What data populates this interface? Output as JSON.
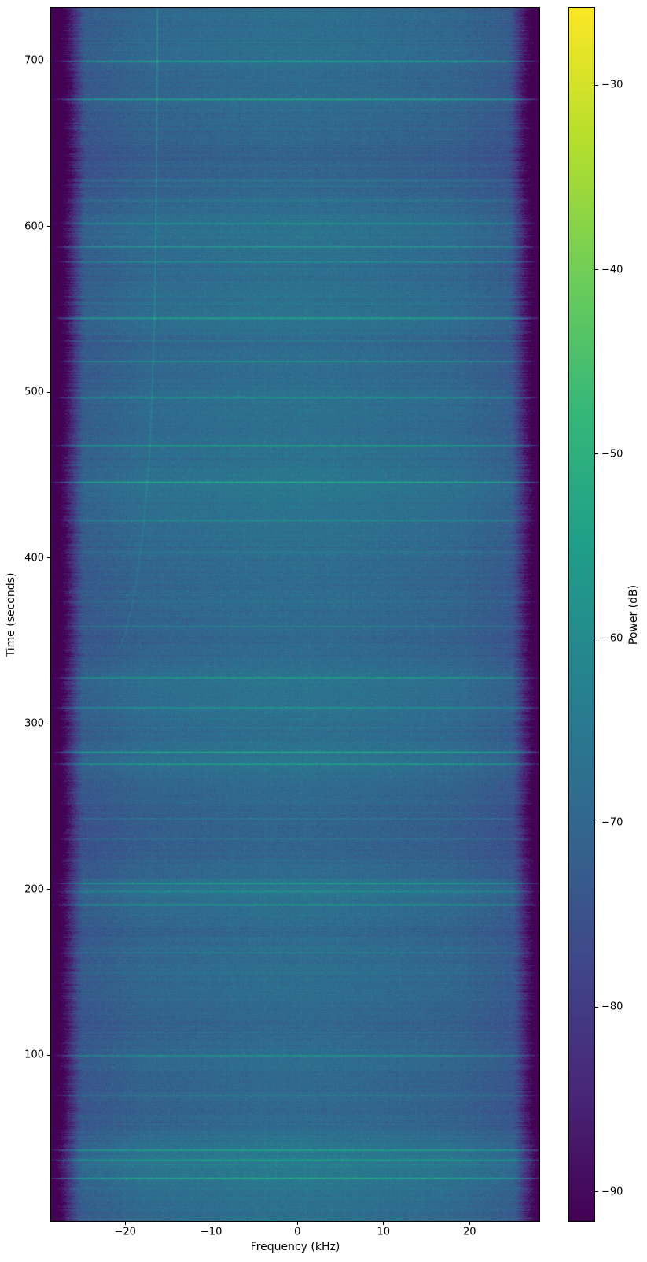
{
  "figure": {
    "background": "#ffffff",
    "spine_color": "#000000",
    "text_color": "#000000"
  },
  "chart_data": {
    "type": "heatmap",
    "subtype": "spectrogram-waterfall",
    "title": "",
    "xlabel": "Frequency (kHz)",
    "ylabel": "Time (seconds)",
    "grid": false,
    "x_extent_khz": [
      -28.6,
      28.1
    ],
    "t_extent_s": [
      0,
      732
    ],
    "x_ticks": [
      -20,
      -10,
      0,
      10,
      20
    ],
    "x_tick_labels": [
      "−20",
      "−10",
      "0",
      "10",
      "20"
    ],
    "y_ticks": [
      700,
      600,
      500,
      400,
      300,
      200,
      100
    ],
    "y_tick_labels": [
      "700",
      "600",
      "500",
      "400",
      "300",
      "200",
      "100"
    ],
    "colormap": "viridis",
    "colormap_anchors": [
      "#440154",
      "#482878",
      "#3e4a89",
      "#31688e",
      "#26828e",
      "#1f9e89",
      "#35b779",
      "#6dcd59",
      "#b4de2c",
      "#fde725"
    ],
    "colorbar": {
      "label": "Power (dB)",
      "vmax": -25.8,
      "vmin": -91.6,
      "ticks": [
        -30,
        -40,
        -50,
        -60,
        -70,
        -80,
        -90
      ],
      "tick_labels": [
        "−30",
        "−40",
        "−50",
        "−60",
        "−70",
        "−80",
        "−90"
      ]
    },
    "noise_floor_db": -70.8,
    "edge_floor_db": -91.6,
    "passband_edge_khz": 25.3,
    "broadband_events": [
      {
        "t": 700,
        "boost_db": 14
      },
      {
        "t": 677,
        "boost_db": 15
      },
      {
        "t": 628,
        "boost_db": 5
      },
      {
        "t": 616,
        "boost_db": 4
      },
      {
        "t": 602,
        "boost_db": 9
      },
      {
        "t": 588,
        "boost_db": 11
      },
      {
        "t": 579,
        "boost_db": 8
      },
      {
        "t": 545,
        "boost_db": 14
      },
      {
        "t": 519,
        "boost_db": 9
      },
      {
        "t": 497,
        "boost_db": 11
      },
      {
        "t": 468,
        "boost_db": 15
      },
      {
        "t": 446,
        "boost_db": 14
      },
      {
        "t": 423,
        "boost_db": 6
      },
      {
        "t": 404,
        "boost_db": 5
      },
      {
        "t": 374,
        "boost_db": 4
      },
      {
        "t": 359,
        "boost_db": 6
      },
      {
        "t": 328,
        "boost_db": 9
      },
      {
        "t": 310,
        "boost_db": 9
      },
      {
        "t": 283,
        "boost_db": 14
      },
      {
        "t": 276,
        "boost_db": 14
      },
      {
        "t": 243,
        "boost_db": 5
      },
      {
        "t": 231,
        "boost_db": 5
      },
      {
        "t": 204,
        "boost_db": 10
      },
      {
        "t": 199,
        "boost_db": 9
      },
      {
        "t": 191,
        "boost_db": 10
      },
      {
        "t": 162,
        "boost_db": 4
      },
      {
        "t": 100,
        "boost_db": 9
      },
      {
        "t": 76,
        "boost_db": 5
      },
      {
        "t": 43,
        "boost_db": 13
      },
      {
        "t": 37,
        "boost_db": 12
      },
      {
        "t": 26,
        "boost_db": 13
      }
    ],
    "doppler_track": {
      "boost_db_max": 10.5,
      "boost_db_min": 3.5,
      "points": [
        {
          "t": 345,
          "f": -20.7
        },
        {
          "t": 355,
          "f": -20.0
        },
        {
          "t": 370,
          "f": -19.3
        },
        {
          "t": 390,
          "f": -18.6
        },
        {
          "t": 420,
          "f": -17.9
        },
        {
          "t": 460,
          "f": -17.25
        },
        {
          "t": 500,
          "f": -16.9
        },
        {
          "t": 550,
          "f": -16.62
        },
        {
          "t": 600,
          "f": -16.48
        },
        {
          "t": 650,
          "f": -16.38
        },
        {
          "t": 700,
          "f": -16.32
        },
        {
          "t": 732,
          "f": -16.3
        }
      ]
    }
  }
}
